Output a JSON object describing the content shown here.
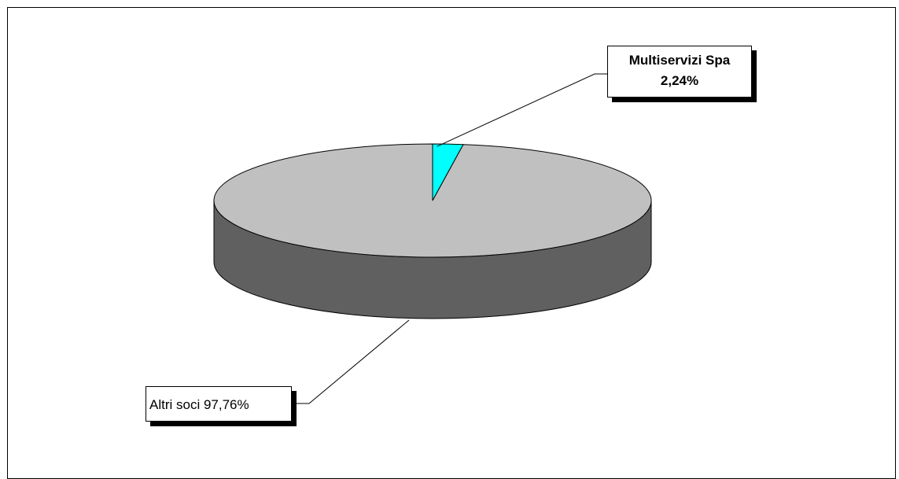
{
  "chart_data": {
    "type": "pie",
    "style": "3d",
    "slices": [
      {
        "name": "Multiservizi Spa",
        "value": 2.24,
        "label_pct": "2,24%",
        "color": "#00ffff"
      },
      {
        "name": "Altri soci",
        "value": 97.76,
        "label_pct": "97,76%",
        "color": "#c0c0c0"
      }
    ],
    "side_color": "#606060",
    "labels": {
      "small": {
        "line1": "Multiservizi Spa",
        "line2": "2,24%"
      },
      "large": {
        "text": "Altri soci 97,76%"
      }
    }
  }
}
